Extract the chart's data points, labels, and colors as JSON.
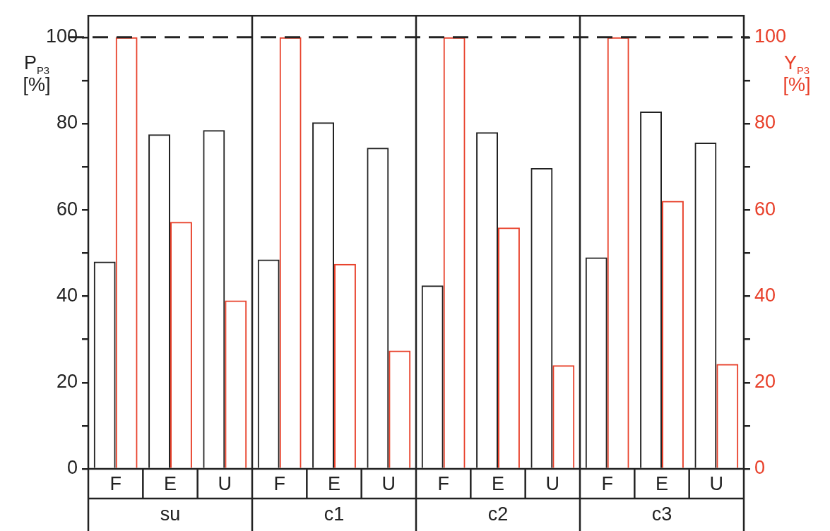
{
  "chart_data": {
    "type": "bar",
    "categories": [
      "F",
      "E",
      "U",
      "F",
      "E",
      "U",
      "F",
      "E",
      "U",
      "F",
      "E",
      "U"
    ],
    "series": [
      {
        "color": "#222222",
        "values": [
          48,
          77.5,
          78.5,
          48.5,
          80.3,
          74.4,
          42.5,
          78,
          69.7,
          49,
          82.8,
          75.6
        ]
      },
      {
        "color": "#e8402a",
        "axis": "y2",
        "values": [
          100,
          57.2,
          39,
          100,
          47.5,
          27.4,
          100,
          55.9,
          24,
          100,
          62.1,
          24.3
        ]
      }
    ],
    "ylabel": "P$_{P3}$ [%]",
    "y2label": "Y$_{P3}$ [%]",
    "ylim": [
      0,
      105
    ],
    "yticks": [
      0,
      {
        "value": 10,
        "label": null
      },
      20,
      {
        "value": 30,
        "label": null
      },
      40,
      {
        "value": 50,
        "label": null
      },
      60,
      {
        "value": 70,
        "label": null
      },
      80,
      {
        "value": 90,
        "label": null
      },
      100
    ],
    "y2lim": [
      0,
      105
    ],
    "y2ticks": [
      0,
      {
        "value": 10,
        "label": null
      },
      20,
      {
        "value": 30,
        "label": null
      },
      40,
      {
        "value": 50,
        "label": null
      },
      60,
      {
        "value": 70,
        "label": null
      },
      80,
      {
        "value": 90,
        "label": null
      },
      100
    ],
    "ref_lines": [
      {
        "axis": "y",
        "value": 100,
        "line_style": "dashed",
        "color": "#222222"
      }
    ],
    "annotations": [
      "su",
      "c1",
      "c2",
      "c3"
    ],
    "grid": false,
    "legend": false
  }
}
